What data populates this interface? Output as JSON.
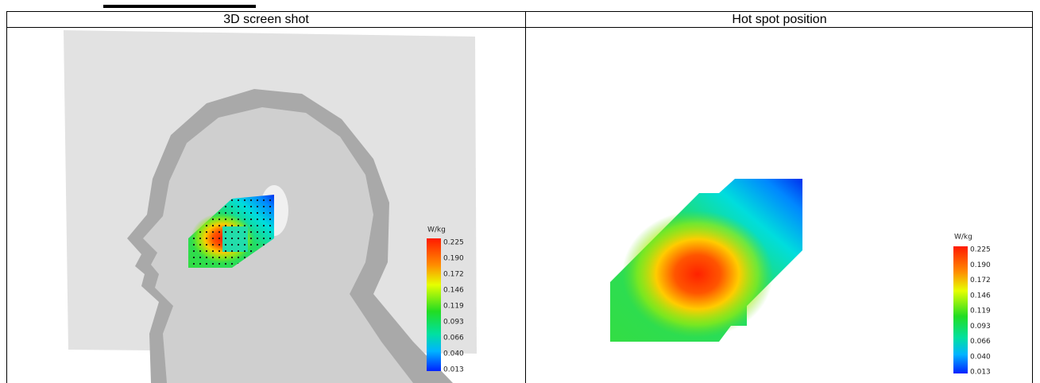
{
  "table": {
    "headers": [
      "3D screen shot",
      "Hot spot position"
    ]
  },
  "panels": [
    {
      "colorbar": {
        "unit": "W/kg",
        "labels": [
          "0.225",
          "0.190",
          "0.172",
          "0.146",
          "0.119",
          "0.093",
          "0.066",
          "0.040",
          "0.013"
        ]
      }
    },
    {
      "colorbar": {
        "unit": "W/kg",
        "labels": [
          "0.225",
          "0.190",
          "0.172",
          "0.146",
          "0.119",
          "0.093",
          "0.066",
          "0.040",
          "0.013"
        ]
      }
    }
  ]
}
